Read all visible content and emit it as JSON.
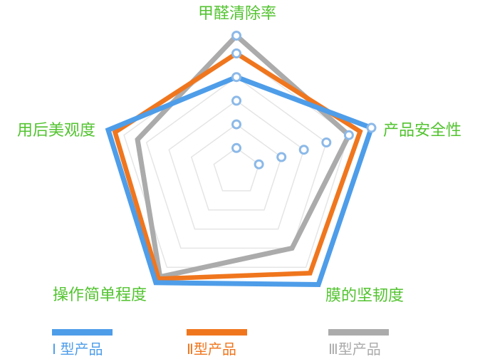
{
  "chart_data": {
    "type": "radar",
    "title": "",
    "indicators": [
      "甲醛清除率",
      "产品安全性",
      "膜的坚韧度",
      "操作简单程度",
      "用后美观度"
    ],
    "axis_order_note": "index 0=top, 1=right, 2=bottom-right, 3=bottom-left, 4=left",
    "max": 6,
    "grid_rings": 5,
    "grid_shape": "pentagon",
    "series": [
      {
        "name": "Ⅰ 型产品",
        "color": "#4E9DE9",
        "values": [
          4.0,
          6.0,
          5.9,
          5.8,
          5.7
        ]
      },
      {
        "name": "Ⅱ型产品",
        "color": "#F0761E",
        "values": [
          5.0,
          5.5,
          5.3,
          5.6,
          5.4
        ]
      },
      {
        "name": "Ⅲ型产品",
        "color": "#ABABAB",
        "values": [
          5.75,
          5.0,
          4.0,
          5.5,
          4.4
        ]
      }
    ],
    "axis_tick_circles": [
      {
        "axis": 0,
        "levels": [
          1,
          2,
          3,
          4,
          5,
          5.75
        ]
      },
      {
        "axis": 1,
        "levels": [
          1,
          2,
          3,
          4,
          5,
          6
        ]
      }
    ],
    "colors": {
      "axis_label": "#52C32F",
      "grid_line": "#E5E5E5",
      "tick_circle_stroke": "#8CB9E8",
      "tick_circle_fill": "#FFFFFF",
      "background": "#FFFFFF"
    },
    "legend_position": "bottom"
  }
}
